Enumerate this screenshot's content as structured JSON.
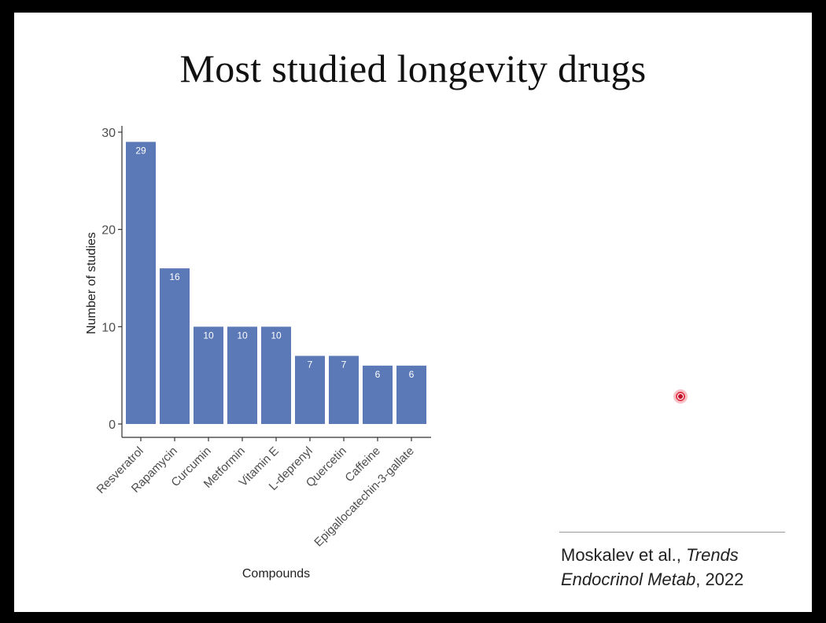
{
  "slide": {
    "title": "Most studied longevity drugs",
    "citation": {
      "authors": "Moskalev et al., ",
      "journal_line1": "Trends",
      "journal_line2": "Endocrinol Metab",
      "year": ", 2022"
    }
  },
  "colors": {
    "bar": "#5b78b7",
    "bar_label": "#ffffff",
    "axis": "#333333",
    "tick_text": "#4d4d4d"
  },
  "chart_data": {
    "type": "bar",
    "title": "",
    "xlabel": "Compounds",
    "ylabel": "Number of studies",
    "categories": [
      "Resveratrol",
      "Rapamycin",
      "Curcumin",
      "Metformin",
      "Vitamin E",
      "L-deprenyl",
      "Quercetin",
      "Caffeine",
      "Epigallocatechin-3-gallate"
    ],
    "values": [
      29,
      16,
      10,
      10,
      10,
      7,
      7,
      6,
      6
    ],
    "yticks": [
      0,
      10,
      20,
      30
    ],
    "ylim": [
      0,
      30
    ],
    "grid": false,
    "legend": "none",
    "data_labels": true
  }
}
